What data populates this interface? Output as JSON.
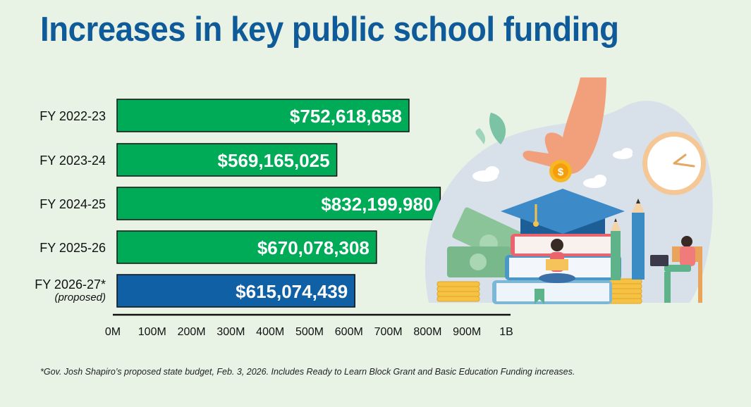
{
  "title": "Increases in key public school funding",
  "footnote": "*Gov. Josh Shapiro’s proposed state budget, Feb. 3, 2026. Includes Ready to Learn Block Grant and Basic Education Funding increases.",
  "colors": {
    "title": "#0f5a98",
    "bar_enacted": "#00ab58",
    "bar_proposed": "#1060a6",
    "background": "#e8f3e6"
  },
  "chart_data": {
    "type": "bar",
    "orientation": "horizontal",
    "categories": [
      "FY 2022-23",
      "FY 2023-24",
      "FY 2024-25",
      "FY 2025-26",
      "FY 2026-27*"
    ],
    "category_notes": [
      "",
      "",
      "",
      "",
      "(proposed)"
    ],
    "values": [
      752618658,
      569165025,
      832199980,
      670078308,
      615074439
    ],
    "value_labels": [
      "$752,618,658",
      "$569,165,025",
      "$832,199,980",
      "$670,078,308",
      "$615,074,439"
    ],
    "bar_colors": [
      "#00ab58",
      "#00ab58",
      "#00ab58",
      "#00ab58",
      "#1060a6"
    ],
    "xlim": [
      0,
      1000000000
    ],
    "xticks": [
      0,
      100000000,
      200000000,
      300000000,
      400000000,
      500000000,
      600000000,
      700000000,
      800000000,
      900000000,
      1000000000
    ],
    "xtick_labels": [
      "0M",
      "100M",
      "200M",
      "300M",
      "400M",
      "500M",
      "600M",
      "700M",
      "800M",
      "900M",
      "1B"
    ],
    "grid": false,
    "legend": "none"
  },
  "illustration": {
    "icons": [
      "hand-icon",
      "coin-icon",
      "clock-icon",
      "graduation-cap-icon",
      "books-icon",
      "money-icon",
      "pencil-icon",
      "student-reading-icon",
      "student-laptop-icon",
      "cloud-icon",
      "leaf-icon"
    ]
  }
}
